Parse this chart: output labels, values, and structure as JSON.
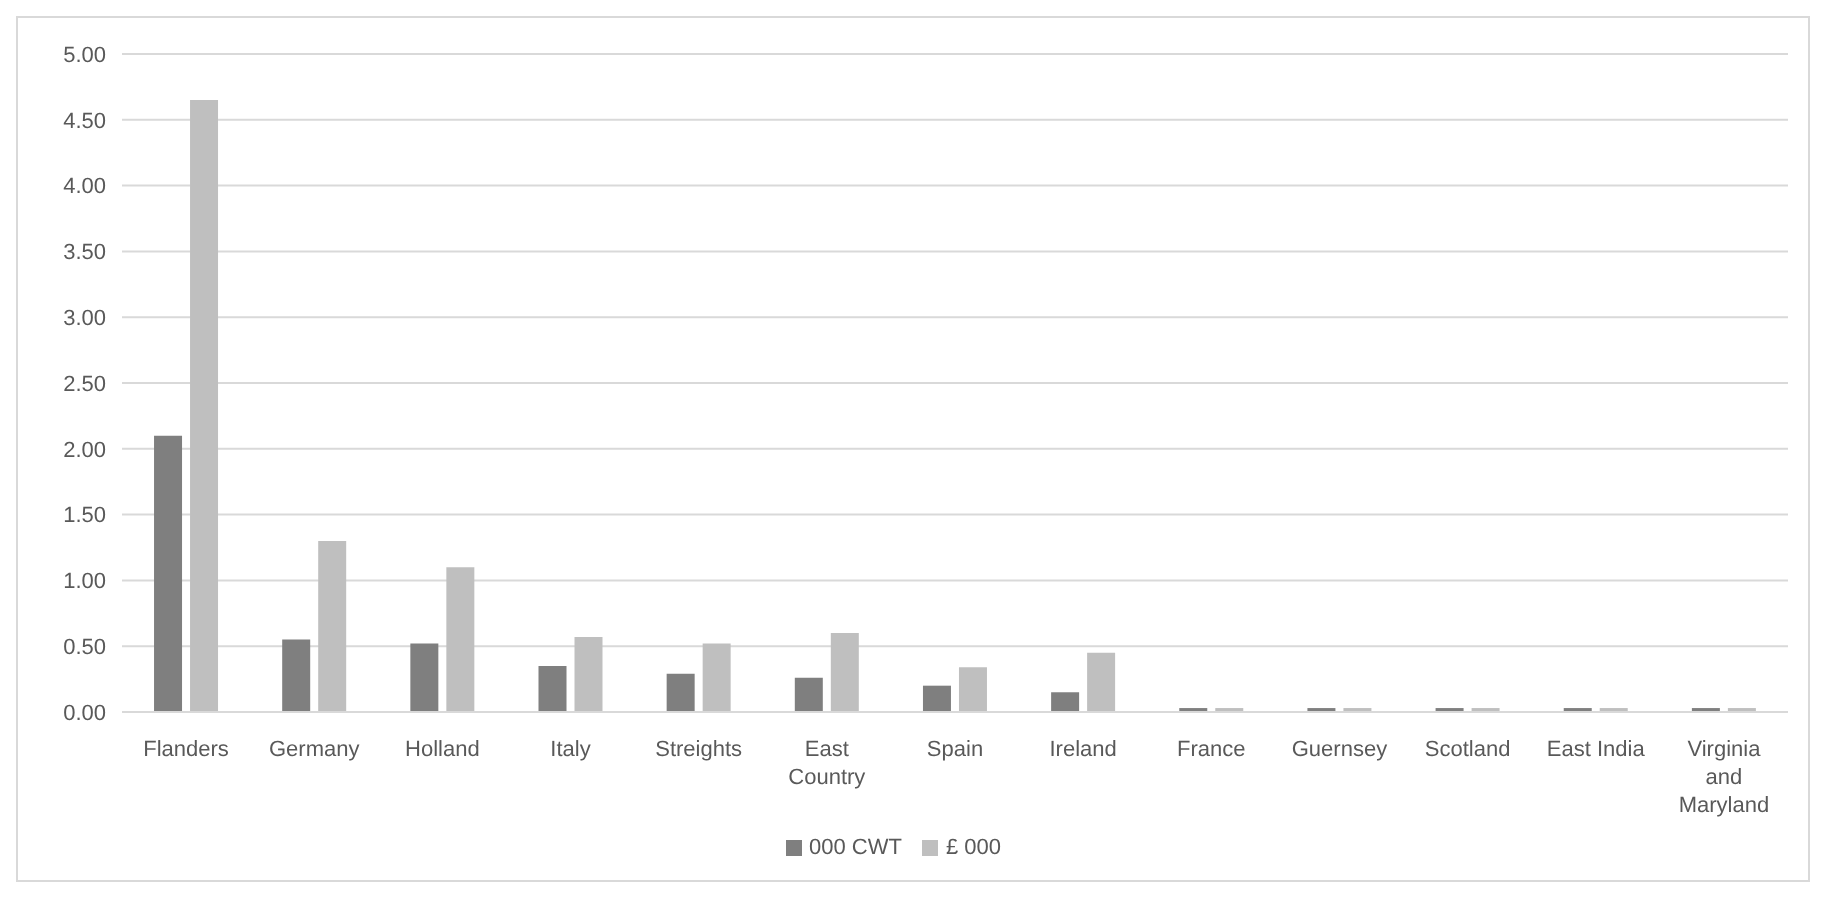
{
  "chart_data": {
    "type": "bar",
    "categories": [
      "Flanders",
      "Germany",
      "Holland",
      "Italy",
      "Streights",
      "East Country",
      "Spain",
      "Ireland",
      "France",
      "Guernsey",
      "Scotland",
      "East India",
      "Virginia and Maryland"
    ],
    "series": [
      {
        "name": "000 CWT",
        "color": "#7f7f7f",
        "values": [
          2.1,
          0.55,
          0.52,
          0.35,
          0.29,
          0.26,
          0.2,
          0.15,
          0.03,
          0.03,
          0.03,
          0.03,
          0.03
        ]
      },
      {
        "name": "£ 000",
        "color": "#bfbfbf",
        "values": [
          4.65,
          1.3,
          1.1,
          0.57,
          0.52,
          0.6,
          0.34,
          0.45,
          0.03,
          0.03,
          0.03,
          0.03,
          0.03
        ]
      }
    ],
    "ylim": [
      0,
      5
    ],
    "yticks": [
      {
        "value": 0,
        "label": "0.00"
      },
      {
        "value": 0.5,
        "label": "0.50"
      },
      {
        "value": 1,
        "label": "1.00"
      },
      {
        "value": 1.5,
        "label": "1.50"
      },
      {
        "value": 2,
        "label": "2.00"
      },
      {
        "value": 2.5,
        "label": "2.50"
      },
      {
        "value": 3,
        "label": "3.00"
      },
      {
        "value": 3.5,
        "label": "3.50"
      },
      {
        "value": 4,
        "label": "4.00"
      },
      {
        "value": 4.5,
        "label": "4.50"
      },
      {
        "value": 5,
        "label": "5.00"
      }
    ],
    "grid": "y",
    "legend": "bottom"
  }
}
